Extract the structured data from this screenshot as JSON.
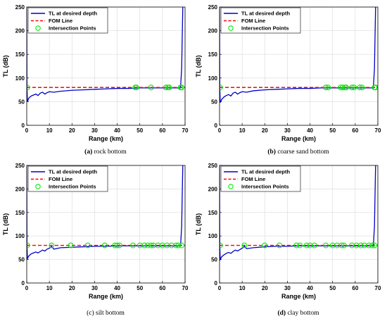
{
  "chart_data": [
    {
      "type": "line",
      "caption_letter": "(a)",
      "caption_text": " rock bottom",
      "xlabel": "Range (km)",
      "ylabel": "TL (dB)",
      "xlim": [
        0,
        70
      ],
      "ylim": [
        0,
        250
      ],
      "xticks": [
        0,
        10,
        20,
        30,
        40,
        50,
        60,
        70
      ],
      "yticks": [
        0,
        50,
        100,
        150,
        200,
        250
      ],
      "grid": true,
      "legend_position": "top-left",
      "series": [
        {
          "name": "TL at desired depth",
          "color": "#0000cc",
          "style": "solid",
          "x": [
            0,
            0.1,
            0.3,
            1,
            2,
            3,
            4,
            5,
            6,
            7,
            8,
            9,
            10,
            12,
            15,
            20,
            25,
            30,
            35,
            40,
            45,
            50,
            55,
            60,
            65,
            68,
            68.5,
            68.8,
            69
          ],
          "y": [
            250,
            80,
            50,
            58,
            62,
            64,
            66,
            63,
            68,
            70,
            66,
            69,
            71,
            70,
            72,
            74,
            75,
            76,
            77,
            78,
            78,
            79,
            79,
            79,
            79,
            79,
            120,
            200,
            250
          ]
        },
        {
          "name": "FOM Line",
          "color": "#ff0000",
          "style": "dashed",
          "x": [
            0,
            70
          ],
          "y": [
            80,
            80
          ]
        },
        {
          "name": "Intersection Points",
          "color": "#00ee00",
          "style": "marker",
          "x": [
            0.2,
            48,
            48.5,
            55,
            61.5,
            62.5,
            63,
            68,
            68.5
          ],
          "y": [
            80,
            80,
            80,
            80,
            80,
            80,
            80,
            80,
            80
          ]
        }
      ]
    },
    {
      "type": "line",
      "caption_letter": "(b)",
      "caption_text": " coarse sand bottom",
      "xlabel": "Range (km)",
      "ylabel": "TL (dB)",
      "xlim": [
        0,
        70
      ],
      "ylim": [
        0,
        250
      ],
      "xticks": [
        0,
        10,
        20,
        30,
        40,
        50,
        60,
        70
      ],
      "yticks": [
        0,
        50,
        100,
        150,
        200,
        250
      ],
      "grid": true,
      "legend_position": "top-left",
      "series": [
        {
          "name": "TL at desired depth",
          "color": "#0000cc",
          "style": "solid",
          "x": [
            0,
            0.1,
            0.3,
            1,
            2,
            3,
            4,
            5,
            6,
            7,
            8,
            9,
            10,
            12,
            15,
            20,
            25,
            30,
            35,
            40,
            45,
            50,
            55,
            60,
            65,
            68,
            68.5,
            68.8,
            69
          ],
          "y": [
            250,
            80,
            48,
            55,
            60,
            63,
            65,
            62,
            68,
            70,
            66,
            69,
            71,
            70,
            73,
            75,
            76,
            77,
            78,
            78,
            79,
            79,
            79,
            79,
            79,
            79,
            120,
            200,
            250
          ]
        },
        {
          "name": "FOM Line",
          "color": "#ff0000",
          "style": "dashed",
          "x": [
            0,
            70
          ],
          "y": [
            80,
            80
          ]
        },
        {
          "name": "Intersection Points",
          "color": "#00ee00",
          "style": "marker",
          "x": [
            0.2,
            47,
            48,
            53.5,
            54.5,
            55.5,
            56,
            58.5,
            59.5,
            62,
            63,
            68.5,
            69
          ],
          "y": [
            80,
            80,
            80,
            80,
            80,
            80,
            80,
            80,
            80,
            80,
            80,
            80,
            80
          ]
        }
      ]
    },
    {
      "type": "line",
      "caption_letter": "",
      "caption_text": "(c) silt bottom",
      "xlabel": "Range (km)",
      "ylabel": "TL (dB)",
      "xlim": [
        0,
        70
      ],
      "ylim": [
        0,
        250
      ],
      "xticks": [
        0,
        10,
        20,
        30,
        40,
        50,
        60,
        70
      ],
      "yticks": [
        0,
        50,
        100,
        150,
        200,
        250
      ],
      "grid": true,
      "legend_position": "top-left",
      "series": [
        {
          "name": "TL at desired depth",
          "color": "#0000cc",
          "style": "solid",
          "x": [
            0,
            0.1,
            0.3,
            1,
            2,
            3,
            4,
            5,
            6,
            7,
            8,
            9,
            10,
            11,
            12,
            15,
            20,
            25,
            30,
            35,
            40,
            45,
            50,
            55,
            60,
            65,
            68,
            68.5,
            68.8,
            69
          ],
          "y": [
            250,
            80,
            52,
            58,
            62,
            64,
            66,
            64,
            67,
            70,
            68,
            72,
            74,
            78,
            72,
            75,
            76,
            77,
            78,
            78,
            79,
            79,
            79,
            79,
            79,
            79,
            79,
            120,
            200,
            250
          ]
        },
        {
          "name": "FOM Line",
          "color": "#ff0000",
          "style": "dashed",
          "x": [
            0,
            70
          ],
          "y": [
            80,
            80
          ]
        },
        {
          "name": "Intersection Points",
          "color": "#00ee00",
          "style": "marker",
          "x": [
            0.2,
            11,
            19.5,
            27,
            34.5,
            39,
            40,
            41,
            47,
            50,
            52,
            53.5,
            55,
            56,
            58,
            60,
            62,
            64,
            66,
            67,
            68.5
          ],
          "y": [
            80,
            80,
            80,
            80,
            80,
            80,
            80,
            80,
            80,
            80,
            80,
            80,
            80,
            80,
            80,
            80,
            80,
            80,
            80,
            80,
            80
          ]
        }
      ]
    },
    {
      "type": "line",
      "caption_letter": "(d)",
      "caption_text": " clay bottom",
      "xlabel": "Range (km)",
      "ylabel": "TL (dB)",
      "xlim": [
        0,
        70
      ],
      "ylim": [
        0,
        250
      ],
      "xticks": [
        0,
        10,
        20,
        30,
        40,
        50,
        60,
        70
      ],
      "yticks": [
        0,
        50,
        100,
        150,
        200,
        250
      ],
      "grid": true,
      "legend_position": "top-left",
      "series": [
        {
          "name": "TL at desired depth",
          "color": "#0000cc",
          "style": "solid",
          "x": [
            0,
            0.1,
            0.3,
            1,
            2,
            3,
            4,
            5,
            6,
            7,
            8,
            9,
            10,
            11,
            12,
            15,
            20,
            25,
            30,
            35,
            40,
            45,
            50,
            55,
            60,
            65,
            68,
            68.5,
            68.8,
            69
          ],
          "y": [
            250,
            80,
            50,
            56,
            60,
            63,
            65,
            63,
            67,
            70,
            68,
            71,
            74,
            78,
            73,
            75,
            77,
            78,
            78,
            79,
            79,
            79,
            79,
            79,
            79,
            79,
            79,
            120,
            200,
            250
          ]
        },
        {
          "name": "FOM Line",
          "color": "#ff0000",
          "style": "dashed",
          "x": [
            0,
            70
          ],
          "y": [
            80,
            80
          ]
        },
        {
          "name": "Intersection Points",
          "color": "#00ee00",
          "style": "marker",
          "x": [
            0.2,
            11,
            20,
            26.5,
            34,
            35.5,
            38.5,
            40,
            42,
            47,
            50,
            52,
            54,
            55,
            58.5,
            60.5,
            62.5,
            64,
            66,
            67.5,
            68.5
          ],
          "y": [
            80,
            80,
            80,
            80,
            80,
            80,
            80,
            80,
            80,
            80,
            80,
            80,
            80,
            80,
            80,
            80,
            80,
            80,
            80,
            80,
            80
          ]
        }
      ]
    }
  ]
}
